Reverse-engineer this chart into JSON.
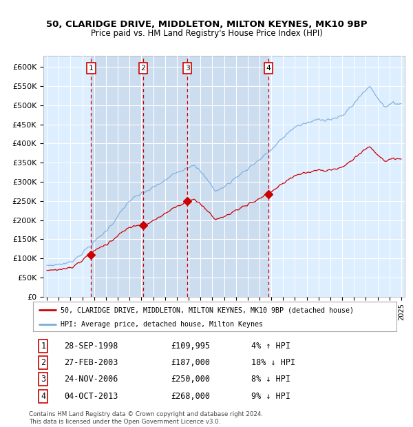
{
  "title1": "50, CLARIDGE DRIVE, MIDDLETON, MILTON KEYNES, MK10 9BP",
  "title2": "Price paid vs. HM Land Registry's House Price Index (HPI)",
  "legend_red": "50, CLARIDGE DRIVE, MIDDLETON, MILTON KEYNES, MK10 9BP (detached house)",
  "legend_blue": "HPI: Average price, detached house, Milton Keynes",
  "transactions": [
    {
      "num": 1,
      "date": "28-SEP-1998",
      "price": 109995,
      "pct": "4%",
      "dir": "↑",
      "year": 1998.75
    },
    {
      "num": 2,
      "date": "27-FEB-2003",
      "price": 187000,
      "pct": "18%",
      "dir": "↓",
      "year": 2003.15
    },
    {
      "num": 3,
      "date": "24-NOV-2006",
      "price": 250000,
      "pct": "8%",
      "dir": "↓",
      "year": 2006.9
    },
    {
      "num": 4,
      "date": "04-OCT-2013",
      "price": 268000,
      "pct": "9%",
      "dir": "↓",
      "year": 2013.75
    }
  ],
  "footer1": "Contains HM Land Registry data © Crown copyright and database right 2024.",
  "footer2": "This data is licensed under the Open Government Licence v3.0.",
  "yticks": [
    0,
    50000,
    100000,
    150000,
    200000,
    250000,
    300000,
    350000,
    400000,
    450000,
    500000,
    550000,
    600000
  ],
  "ylabels": [
    "£0",
    "£50K",
    "£100K",
    "£150K",
    "£200K",
    "£250K",
    "£300K",
    "£350K",
    "£400K",
    "£450K",
    "£500K",
    "£550K",
    "£600K"
  ],
  "background_color": "#ffffff",
  "plot_bg_color": "#ddeeff",
  "grid_color": "#ffffff",
  "red_color": "#cc0000",
  "blue_color": "#7aacdb",
  "vline_color": "#cc0000",
  "box_color": "#cc0000",
  "shade_color": "#ccddf0"
}
